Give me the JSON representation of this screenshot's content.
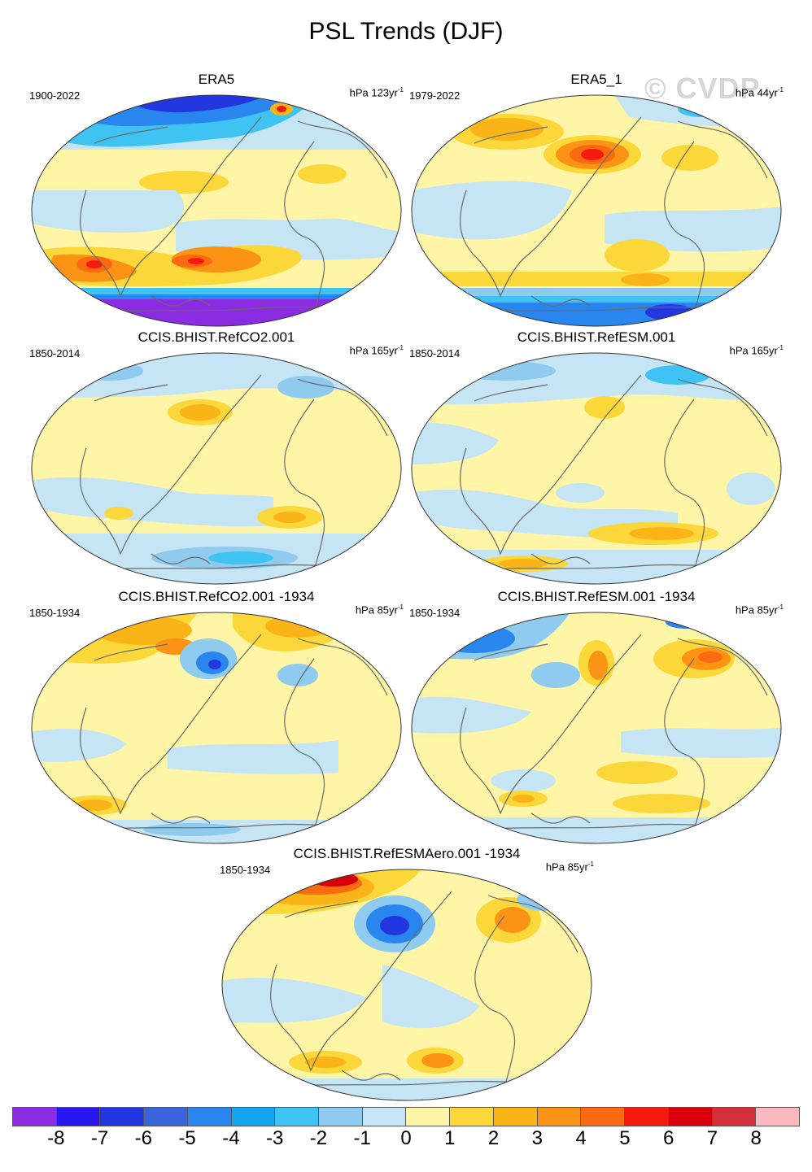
{
  "title": "PSL Trends (DJF)",
  "watermark": "© CVDP",
  "panels": [
    {
      "title": "ERA5",
      "period": "1900-2022",
      "units_text": "hPa 123yr",
      "units_exp": "-1"
    },
    {
      "title": "ERA5_1",
      "period": "1979-2022",
      "units_text": "hPa 44yr",
      "units_exp": "-1"
    },
    {
      "title": "CCIS.BHIST.RefCO2.001",
      "period": "1850-2014",
      "units_text": "hPa 165yr",
      "units_exp": "-1"
    },
    {
      "title": "CCIS.BHIST.RefESM.001",
      "period": "1850-2014",
      "units_text": "hPa 165yr",
      "units_exp": "-1"
    },
    {
      "title": "CCIS.BHIST.RefCO2.001 -1934",
      "period": "1850-1934",
      "units_text": "hPa 85yr",
      "units_exp": "-1"
    },
    {
      "title": "CCIS.BHIST.RefESM.001 -1934",
      "period": "1850-1934",
      "units_text": "hPa 85yr",
      "units_exp": "-1"
    },
    {
      "title": "CCIS.BHIST.RefESMAero.001 -1934",
      "period": "1850-1934",
      "units_text": "hPa 85yr",
      "units_exp": "-1"
    }
  ],
  "colorbar": {
    "labels": [
      "-8",
      "-7",
      "-6",
      "-5",
      "-4",
      "-3",
      "-2",
      "-1",
      "0",
      "1",
      "2",
      "3",
      "4",
      "5",
      "6",
      "7",
      "8"
    ],
    "colors": [
      "#8b2be2",
      "#2a16ee",
      "#2237e0",
      "#3a63dc",
      "#2a86ef",
      "#15a6f0",
      "#3ec3f3",
      "#8fcbee",
      "#c5e4f4",
      "#fff5a6",
      "#fbd73a",
      "#fbb418",
      "#fb9414",
      "#fb6a10",
      "#f5190e",
      "#d9000c",
      "#d4303b",
      "#fdb7bf"
    ]
  }
}
